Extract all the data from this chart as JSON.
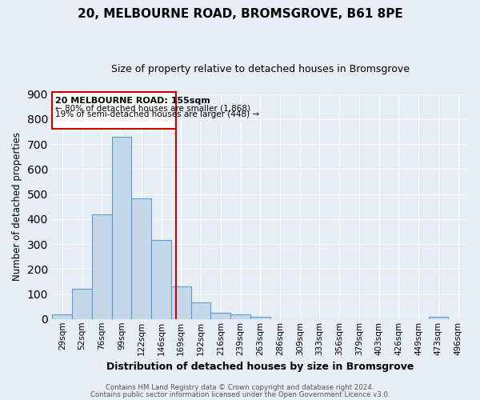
{
  "title": "20, MELBOURNE ROAD, BROMSGROVE, B61 8PE",
  "subtitle": "Size of property relative to detached houses in Bromsgrove",
  "xlabel": "Distribution of detached houses by size in Bromsgrove",
  "ylabel": "Number of detached properties",
  "bar_labels": [
    "29sqm",
    "52sqm",
    "76sqm",
    "99sqm",
    "122sqm",
    "146sqm",
    "169sqm",
    "192sqm",
    "216sqm",
    "239sqm",
    "263sqm",
    "286sqm",
    "309sqm",
    "333sqm",
    "356sqm",
    "379sqm",
    "403sqm",
    "426sqm",
    "449sqm",
    "473sqm",
    "496sqm"
  ],
  "bar_values": [
    20,
    122,
    420,
    730,
    482,
    315,
    132,
    65,
    25,
    20,
    9,
    0,
    0,
    0,
    0,
    0,
    0,
    0,
    0,
    8,
    0
  ],
  "bar_color": "#c5d8e8",
  "bar_edge_color": "#5b9bd5",
  "vline_color": "#cc0000",
  "vline_pos": 5.73,
  "ylim": [
    0,
    900
  ],
  "yticks": [
    0,
    100,
    200,
    300,
    400,
    500,
    600,
    700,
    800,
    900
  ],
  "annotation_box_title": "20 MELBOURNE ROAD: 155sqm",
  "annotation_line1": "← 80% of detached houses are smaller (1,868)",
  "annotation_line2": "19% of semi-detached houses are larger (448) →",
  "annotation_box_color": "#cc0000",
  "bg_color": "#e8eef5",
  "grid_color": "#ffffff",
  "footer_line1": "Contains HM Land Registry data © Crown copyright and database right 2024.",
  "footer_line2": "Contains public sector information licensed under the Open Government Licence v3.0."
}
